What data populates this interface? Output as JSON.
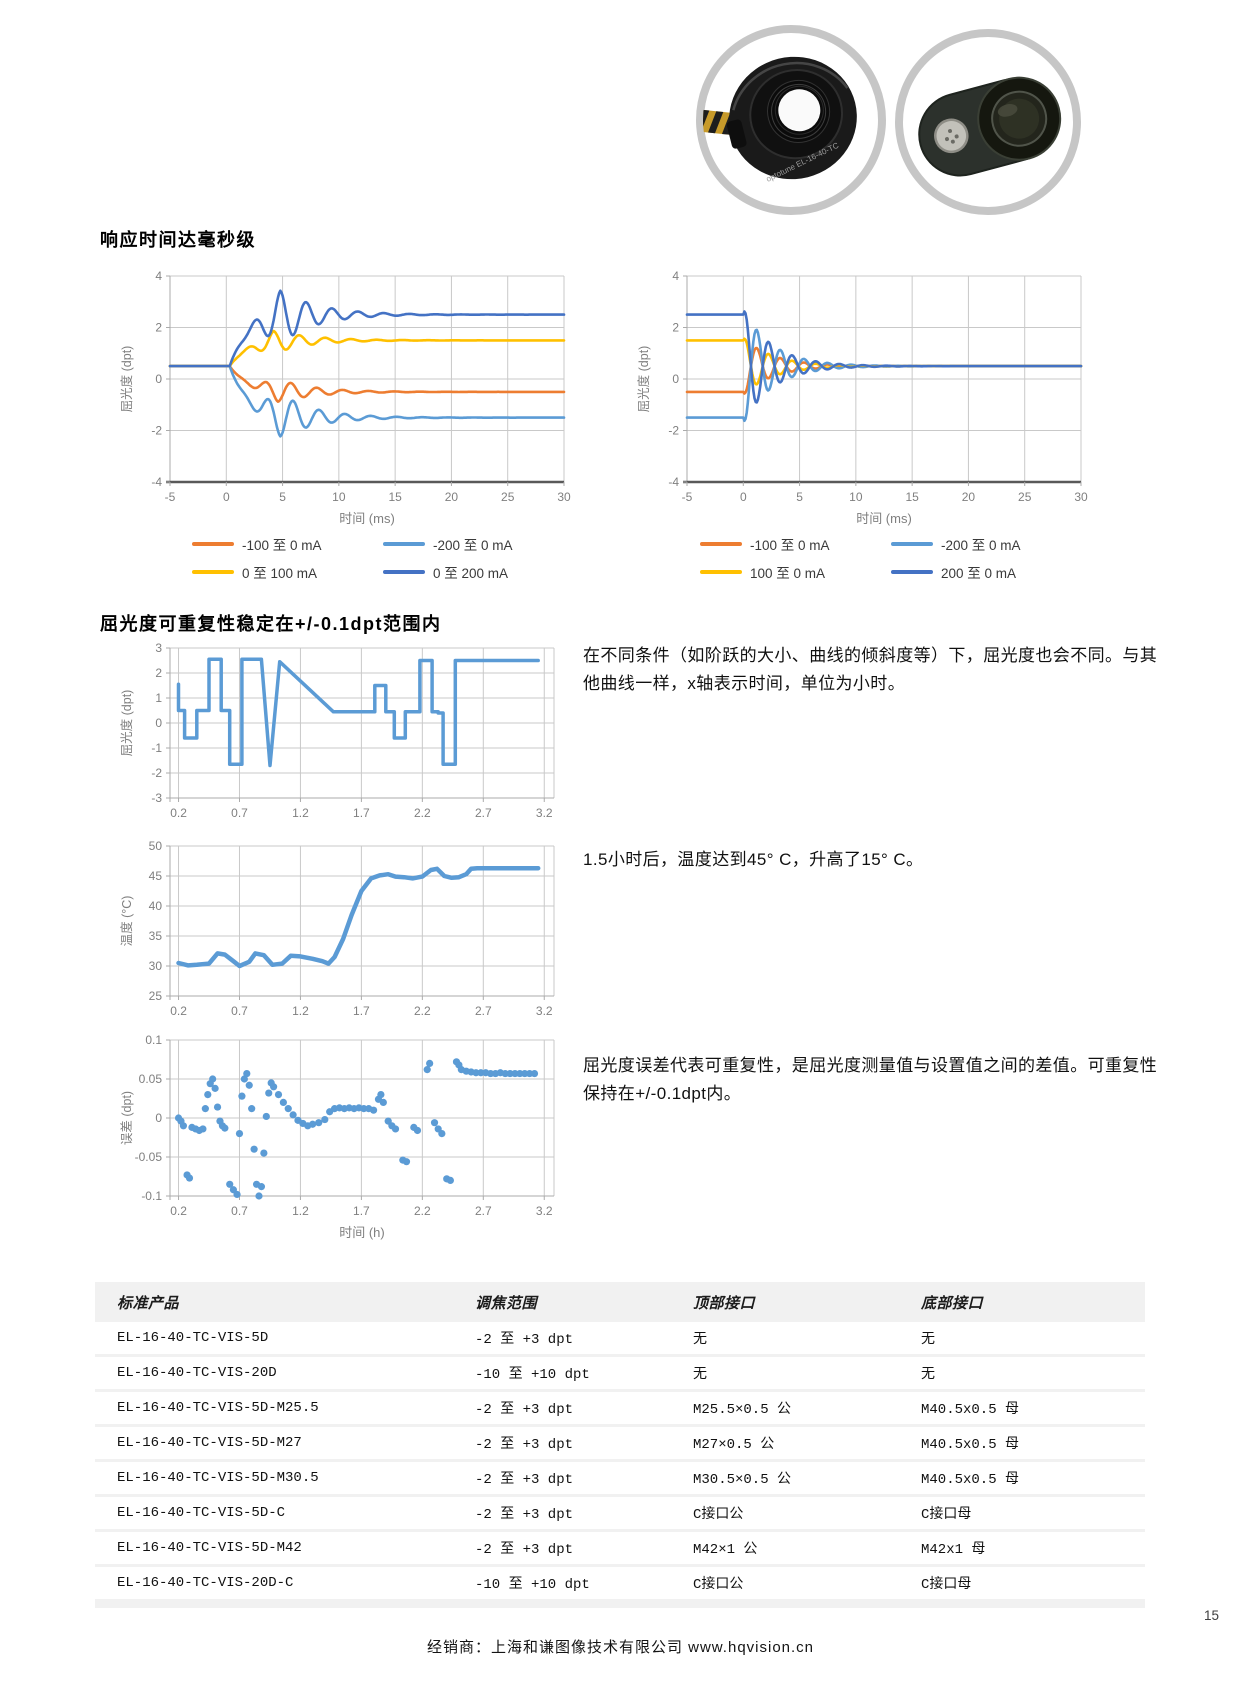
{
  "page": {
    "number": "15",
    "footer": "经销商：上海和谦图像技术有限公司   www.hqvision.cn"
  },
  "images": {
    "front_photo": "liquid-lens-front-view",
    "side_photo": "liquid-lens-side-view",
    "engraving": "optotune  EL-16-40-TC"
  },
  "sections": {
    "response_heading": "响应时间达毫秒级",
    "repeat_heading": "屈光度可重复性稳定在+/-0.1dpt范围内"
  },
  "paragraphs": {
    "conditions": "在不同条件（如阶跃的大小、曲线的倾斜度等）下，屈光度也会不同。与其他曲线一样，x轴表示时间，单位为小时。",
    "temperature": "1.5小时后，温度达到45° C，升高了15° C。",
    "error": "屈光度误差代表可重复性，是屈光度测量值与设置值之间的差值。可重复性保持在+/-0.1dpt内。"
  },
  "colors": {
    "orange": "#ED7D31",
    "light_blue": "#5B9BD5",
    "yellow": "#FFC000",
    "dark_blue": "#4472C4",
    "series_blue": "#5B9BD5",
    "grid": "#C9C9C9",
    "tick_text": "#7F7F7F",
    "axis_dark": "#595959",
    "axis_light": "#ABABAB",
    "photo_ring": "#C6C6C6"
  },
  "chart_data": [
    {
      "id": "response-rise",
      "type": "line",
      "model": "step",
      "xlabel": "时间 (ms)",
      "ylabel": "屈光度 (dpt)",
      "xlim": [
        -5,
        30
      ],
      "ylim": [
        -4,
        4
      ],
      "xticks": [
        -5,
        0,
        5,
        10,
        15,
        20,
        25,
        30
      ],
      "yticks": [
        4,
        2,
        0,
        -2,
        -4
      ],
      "grid": true,
      "dark_axis": true,
      "legend_position": "bottom",
      "series": [
        {
          "name": "-100 至 0 mA",
          "color": "#ED7D31",
          "start": 0.5,
          "final": -0.5,
          "peak": -0.95,
          "peak_t": 4.6
        },
        {
          "name": "-200 至 0 mA",
          "color": "#5B9BD5",
          "start": 0.5,
          "final": -1.5,
          "peak": -2.35,
          "peak_t": 4.8
        },
        {
          "name": "0 至 100 mA",
          "color": "#FFC000",
          "start": 0.5,
          "final": 1.5,
          "peak": 1.95,
          "peak_t": 4.2
        },
        {
          "name": "0 至 200 mA",
          "color": "#4472C4",
          "start": 0.5,
          "final": 2.5,
          "peak": 3.55,
          "peak_t": 4.8
        }
      ]
    },
    {
      "id": "response-fall",
      "type": "line",
      "model": "settle",
      "xlabel": "时间 (ms)",
      "ylabel": "屈光度 (dpt)",
      "xlim": [
        -5,
        30
      ],
      "ylim": [
        -4,
        4
      ],
      "xticks": [
        -5,
        0,
        5,
        10,
        15,
        20,
        25,
        30
      ],
      "yticks": [
        4,
        2,
        0,
        -2,
        -4
      ],
      "grid": true,
      "dark_axis": true,
      "legend_position": "bottom",
      "series": [
        {
          "name": "-100 至 0 mA",
          "color": "#ED7D31",
          "start": -0.5,
          "final": 0.5
        },
        {
          "name": "-200 至 0 mA",
          "color": "#5B9BD5",
          "start": -1.5,
          "final": 0.5
        },
        {
          "name": "100 至 0 mA",
          "color": "#FFC000",
          "start": 1.5,
          "final": 0.5
        },
        {
          "name": "200 至 0 mA",
          "color": "#4472C4",
          "start": 2.5,
          "final": 0.5
        }
      ]
    },
    {
      "id": "diopter-step-profile",
      "type": "line",
      "xlabel": "",
      "ylabel": "屈光度 (dpt)",
      "xlim": [
        0.13,
        3.28
      ],
      "ylim": [
        -3,
        3
      ],
      "xticks": [
        0.2,
        0.7,
        1.2,
        1.7,
        2.2,
        2.7,
        3.2
      ],
      "yticks": [
        3,
        2,
        1,
        0,
        -1,
        -2,
        -3
      ],
      "grid": true,
      "dark_axis": false,
      "thick": 3.5,
      "points": [
        [
          0.2,
          1.55
        ],
        [
          0.2,
          0.5
        ],
        [
          0.25,
          0.5
        ],
        [
          0.25,
          -0.6
        ],
        [
          0.35,
          -0.6
        ],
        [
          0.35,
          0.5
        ],
        [
          0.45,
          0.5
        ],
        [
          0.45,
          2.55
        ],
        [
          0.55,
          2.55
        ],
        [
          0.55,
          0.5
        ],
        [
          0.62,
          0.5
        ],
        [
          0.62,
          -1.65
        ],
        [
          0.72,
          -1.65
        ],
        [
          0.72,
          2.55
        ],
        [
          0.88,
          2.55
        ],
        [
          0.95,
          -1.7
        ],
        [
          1.03,
          2.45
        ],
        [
          1.47,
          0.45
        ],
        [
          1.81,
          0.45
        ],
        [
          1.81,
          1.5
        ],
        [
          1.9,
          1.5
        ],
        [
          1.9,
          0.45
        ],
        [
          1.97,
          0.45
        ],
        [
          1.97,
          -0.6
        ],
        [
          2.06,
          -0.6
        ],
        [
          2.06,
          0.45
        ],
        [
          2.18,
          0.45
        ],
        [
          2.18,
          2.5
        ],
        [
          2.28,
          2.5
        ],
        [
          2.28,
          0.45
        ],
        [
          2.33,
          0.45
        ],
        [
          2.33,
          0.4
        ],
        [
          2.37,
          0.4
        ],
        [
          2.37,
          -1.65
        ],
        [
          2.47,
          -1.65
        ],
        [
          2.47,
          2.5
        ],
        [
          3.15,
          2.5
        ]
      ]
    },
    {
      "id": "temperature",
      "type": "line",
      "xlabel": "",
      "ylabel": "温度 (°C)",
      "xlim": [
        0.13,
        3.28
      ],
      "ylim": [
        25,
        50
      ],
      "xticks": [
        0.2,
        0.7,
        1.2,
        1.7,
        2.2,
        2.7,
        3.2
      ],
      "yticks": [
        50,
        45,
        40,
        35,
        30,
        25
      ],
      "grid": true,
      "dark_axis": false,
      "thick": 4.5,
      "points": [
        [
          0.2,
          30.5
        ],
        [
          0.28,
          30.1
        ],
        [
          0.35,
          30.2
        ],
        [
          0.45,
          30.4
        ],
        [
          0.52,
          32.1
        ],
        [
          0.58,
          31.9
        ],
        [
          0.65,
          30.8
        ],
        [
          0.7,
          30.0
        ],
        [
          0.78,
          30.7
        ],
        [
          0.83,
          32.1
        ],
        [
          0.9,
          31.8
        ],
        [
          0.97,
          30.2
        ],
        [
          1.05,
          30.4
        ],
        [
          1.12,
          31.7
        ],
        [
          1.2,
          31.6
        ],
        [
          1.3,
          31.2
        ],
        [
          1.38,
          30.8
        ],
        [
          1.43,
          30.4
        ],
        [
          1.48,
          31.5
        ],
        [
          1.55,
          34.5
        ],
        [
          1.62,
          38.5
        ],
        [
          1.7,
          42.5
        ],
        [
          1.78,
          44.6
        ],
        [
          1.85,
          45.1
        ],
        [
          1.92,
          45.3
        ],
        [
          1.98,
          44.9
        ],
        [
          2.05,
          44.8
        ],
        [
          2.12,
          44.6
        ],
        [
          2.2,
          44.9
        ],
        [
          2.27,
          46.0
        ],
        [
          2.32,
          46.2
        ],
        [
          2.38,
          45.0
        ],
        [
          2.44,
          44.7
        ],
        [
          2.5,
          44.8
        ],
        [
          2.56,
          45.3
        ],
        [
          2.6,
          46.2
        ],
        [
          2.65,
          46.3
        ],
        [
          3.15,
          46.3
        ]
      ]
    },
    {
      "id": "repeatability-error",
      "type": "scatter",
      "xlabel": "时间 (h)",
      "ylabel": "误差 (dpt)",
      "xlim": [
        0.13,
        3.28
      ],
      "ylim": [
        -0.1,
        0.1
      ],
      "xticks": [
        0.2,
        0.7,
        1.2,
        1.7,
        2.2,
        2.7,
        3.2
      ],
      "yticks": [
        0.1,
        0.05,
        0,
        -0.05,
        -0.1
      ],
      "grid": true,
      "dark_axis": false,
      "points": [
        [
          0.2,
          0.0
        ],
        [
          0.22,
          -0.004
        ],
        [
          0.24,
          -0.01
        ],
        [
          0.27,
          -0.073
        ],
        [
          0.29,
          -0.077
        ],
        [
          0.31,
          -0.012
        ],
        [
          0.34,
          -0.014
        ],
        [
          0.37,
          -0.016
        ],
        [
          0.4,
          -0.014
        ],
        [
          0.42,
          0.012
        ],
        [
          0.44,
          0.03
        ],
        [
          0.46,
          0.044
        ],
        [
          0.48,
          0.05
        ],
        [
          0.5,
          0.038
        ],
        [
          0.52,
          0.014
        ],
        [
          0.54,
          -0.004
        ],
        [
          0.56,
          -0.01
        ],
        [
          0.58,
          -0.013
        ],
        [
          0.62,
          -0.085
        ],
        [
          0.65,
          -0.092
        ],
        [
          0.68,
          -0.098
        ],
        [
          0.7,
          -0.02
        ],
        [
          0.72,
          0.028
        ],
        [
          0.74,
          0.05
        ],
        [
          0.76,
          0.057
        ],
        [
          0.78,
          0.042
        ],
        [
          0.8,
          0.012
        ],
        [
          0.82,
          -0.04
        ],
        [
          0.84,
          -0.085
        ],
        [
          0.86,
          -0.1
        ],
        [
          0.88,
          -0.088
        ],
        [
          0.9,
          -0.045
        ],
        [
          0.92,
          0.002
        ],
        [
          0.94,
          0.032
        ],
        [
          0.96,
          0.045
        ],
        [
          0.98,
          0.04
        ],
        [
          1.02,
          0.03
        ],
        [
          1.06,
          0.02
        ],
        [
          1.1,
          0.012
        ],
        [
          1.14,
          0.004
        ],
        [
          1.18,
          -0.003
        ],
        [
          1.22,
          -0.007
        ],
        [
          1.26,
          -0.01
        ],
        [
          1.3,
          -0.008
        ],
        [
          1.35,
          -0.006
        ],
        [
          1.4,
          -0.002
        ],
        [
          1.44,
          0.008
        ],
        [
          1.48,
          0.012
        ],
        [
          1.52,
          0.013
        ],
        [
          1.56,
          0.012
        ],
        [
          1.6,
          0.013
        ],
        [
          1.64,
          0.012
        ],
        [
          1.68,
          0.013
        ],
        [
          1.72,
          0.012
        ],
        [
          1.76,
          0.012
        ],
        [
          1.8,
          0.01
        ],
        [
          1.84,
          0.024
        ],
        [
          1.86,
          0.03
        ],
        [
          1.88,
          0.02
        ],
        [
          1.92,
          -0.004
        ],
        [
          1.95,
          -0.01
        ],
        [
          1.98,
          -0.014
        ],
        [
          2.04,
          -0.054
        ],
        [
          2.07,
          -0.056
        ],
        [
          2.13,
          -0.012
        ],
        [
          2.16,
          -0.016
        ],
        [
          2.24,
          0.062
        ],
        [
          2.26,
          0.07
        ],
        [
          2.3,
          -0.006
        ],
        [
          2.33,
          -0.014
        ],
        [
          2.36,
          -0.02
        ],
        [
          2.4,
          -0.078
        ],
        [
          2.43,
          -0.08
        ],
        [
          2.48,
          0.072
        ],
        [
          2.5,
          0.068
        ],
        [
          2.52,
          0.062
        ],
        [
          2.56,
          0.06
        ],
        [
          2.6,
          0.059
        ],
        [
          2.64,
          0.058
        ],
        [
          2.68,
          0.058
        ],
        [
          2.72,
          0.058
        ],
        [
          2.76,
          0.057
        ],
        [
          2.8,
          0.057
        ],
        [
          2.84,
          0.058
        ],
        [
          2.88,
          0.057
        ],
        [
          2.92,
          0.057
        ],
        [
          2.96,
          0.057
        ],
        [
          3.0,
          0.057
        ],
        [
          3.04,
          0.057
        ],
        [
          3.08,
          0.057
        ],
        [
          3.12,
          0.057
        ]
      ]
    }
  ],
  "table": {
    "headers": [
      "标准产品",
      "调焦范围",
      "顶部接口",
      "底部接口"
    ],
    "rows": [
      [
        "EL-16-40-TC-VIS-5D",
        "-2 至 +3 dpt",
        "无",
        "无"
      ],
      [
        "EL-16-40-TC-VIS-20D",
        "-10 至 +10 dpt",
        "无",
        "无"
      ],
      [
        "EL-16-40-TC-VIS-5D-M25.5",
        "-2 至 +3 dpt",
        "M25.5×0.5 公",
        "M40.5x0.5 母"
      ],
      [
        "EL-16-40-TC-VIS-5D-M27",
        "-2 至 +3 dpt",
        "M27×0.5 公",
        "M40.5x0.5 母"
      ],
      [
        "EL-16-40-TC-VIS-5D-M30.5",
        "-2 至 +3 dpt",
        "M30.5×0.5 公",
        "M40.5x0.5 母"
      ],
      [
        "EL-16-40-TC-VIS-5D-C",
        "-2 至 +3 dpt",
        "C接口公",
        "C接口母"
      ],
      [
        "EL-16-40-TC-VIS-5D-M42",
        "-2 至 +3 dpt",
        "M42×1 公",
        "M42x1 母"
      ],
      [
        "EL-16-40-TC-VIS-20D-C",
        "-10 至 +10 dpt",
        "C接口公",
        "C接口母"
      ]
    ]
  }
}
